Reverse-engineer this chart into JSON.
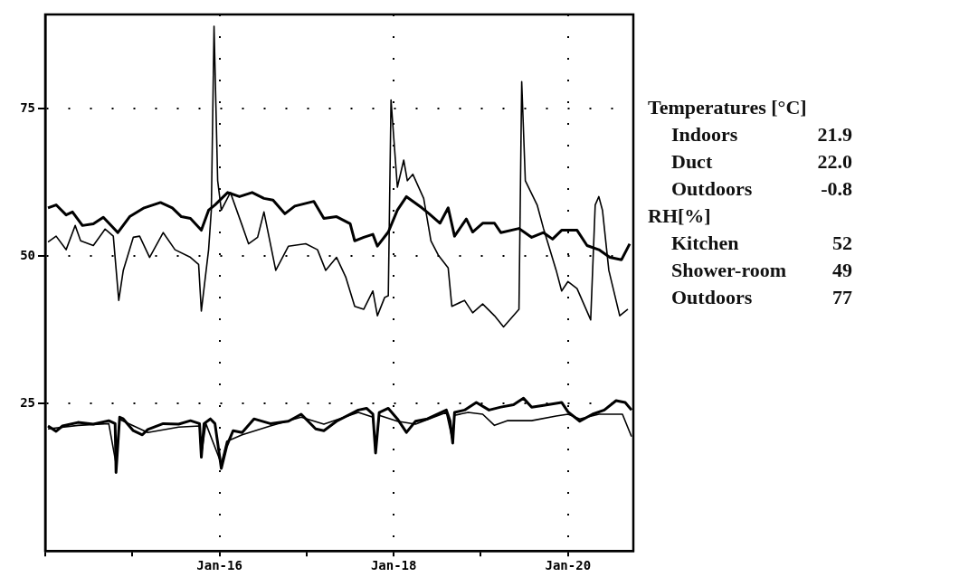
{
  "chart_data": {
    "type": "line",
    "xlim": [
      "--01-14",
      "--01-20T18:00"
    ],
    "ylim": [
      0,
      91
    ],
    "xticks": [
      {
        "value": "--01-14",
        "label": null
      },
      {
        "value": "--01-15",
        "label": null
      },
      {
        "value": "--01-16",
        "label": "Jan-16"
      },
      {
        "value": "--01-17",
        "label": null
      },
      {
        "value": "--01-18",
        "label": "Jan-18"
      },
      {
        "value": "--01-19",
        "label": null
      },
      {
        "value": "--01-20",
        "label": "Jan-20"
      }
    ],
    "yticks": [
      25,
      50,
      75
    ],
    "grid": true,
    "legend": false,
    "marker": "none",
    "line_style": "solid",
    "annotations": [
      "Temperatures [°C]",
      "Indoors\t21.9",
      "Duct\t22.0",
      "Outdoors\t-0.8",
      "RH[%]",
      "Kitchen\t52",
      "Shower-room\t49",
      "Outdoors\t77"
    ],
    "series": [
      {
        "color": "#000000",
        "x": [
          "--01-14T00:45",
          "--01-14T03:00",
          "--01-14T05:45",
          "--01-14T07:30",
          "--01-14T10:15",
          "--01-14T13:15",
          "--01-14T16:00",
          "--01-14T20:00",
          "--01-14T23:15",
          "--01-15T03:15",
          "--01-15T07:45",
          "--01-15T11:00",
          "--01-15T13:30",
          "--01-15T16:00",
          "--01-15T19:00",
          "--01-15T21:00",
          "--01-15T22:45",
          "--01-16T02:15",
          "--01-16T05:30",
          "--01-16T09:00",
          "--01-16T12:15",
          "--01-16T14:45",
          "--01-16T18:00",
          "--01-16T20:45",
          "--01-17T02:00",
          "--01-17T04:45",
          "--01-17T08:15",
          "--01-17T12:00",
          "--01-17T13:15",
          "--01-17T15:45",
          "--01-17T18:15",
          "--01-17T19:30",
          "--01-17T22:30",
          "--01-18T01:00",
          "--01-18T03:30",
          "--01-18T07:45",
          "--01-18T09:45",
          "--01-18T12:45",
          "--01-18T15:00",
          "--01-18T16:45",
          "--01-18T20:00",
          "--01-18T21:45",
          "--01-19T00:30",
          "--01-19T03:45",
          "--01-19T05:30",
          "--01-19T10:30",
          "--01-19T14:00",
          "--01-19T17:15",
          "--01-19T19:45",
          "--01-19T22:15",
          "--01-20T02:30",
          "--01-20T05:15",
          "--01-20T08:30",
          "--01-20T11:30",
          "--01-20T14:45",
          "--01-20T17:00"
        ],
        "values": [
          58.2,
          58.7,
          57.0,
          57.5,
          55.2,
          55.5,
          56.6,
          54.0,
          56.7,
          58.2,
          59.1,
          58.2,
          56.7,
          56.4,
          54.4,
          57.8,
          58.7,
          60.8,
          60.1,
          60.8,
          59.8,
          59.5,
          57.2,
          58.5,
          59.3,
          56.4,
          56.7,
          55.5,
          52.6,
          53.2,
          53.7,
          51.7,
          54.1,
          57.8,
          60.1,
          58.2,
          57.2,
          55.6,
          58.2,
          53.4,
          56.3,
          54.1,
          55.6,
          55.6,
          54.0,
          54.7,
          53.2,
          54.0,
          52.9,
          54.4,
          54.4,
          51.8,
          51.1,
          49.8,
          49.4,
          52.1
        ]
      },
      {
        "color": "#000000",
        "x": [
          "--01-14T00:45",
          "--01-14T03:00",
          "--01-14T05:45",
          "--01-14T08:15",
          "--01-14T09:45",
          "--01-14T13:15",
          "--01-14T16:30",
          "--01-14T18:45",
          "--01-14T20:15",
          "--01-14T21:30",
          "--01-15T00:15",
          "--01-15T02:00",
          "--01-15T04:45",
          "--01-15T08:30",
          "--01-15T11:45",
          "--01-15T16:00",
          "--01-15T18:15",
          "--01-15T19:00",
          "--01-15T21:00",
          "--01-15T21:45",
          "--01-15T22:30",
          "--01-15T23:30",
          "--01-16T00:30",
          "--01-16T03:00",
          "--01-16T06:15",
          "--01-16T08:00",
          "--01-16T10:30",
          "--01-16T12:15",
          "--01-16T15:30",
          "--01-16T19:00",
          "--01-16T23:45",
          "--01-17T03:00",
          "--01-17T05:15",
          "--01-17T08:15",
          "--01-17T10:45",
          "--01-17T13:15",
          "--01-17T15:45",
          "--01-17T18:15",
          "--01-17T19:30",
          "--01-17T21:30",
          "--01-17T22:30",
          "--01-17T23:15",
          "--01-18T01:00",
          "--01-18T02:45",
          "--01-18T03:45",
          "--01-18T05:15",
          "--01-18T08:15",
          "--01-18T10:15",
          "--01-18T12:15",
          "--01-18T15:00",
          "--01-18T16:00",
          "--01-18T19:30",
          "--01-18T21:45",
          "--01-19T00:30",
          "--01-19T03:45",
          "--01-19T06:15",
          "--01-19T10:30",
          "--01-19T11:15",
          "--01-19T12:15",
          "--01-19T15:30",
          "--01-19T17:15",
          "--01-19T20:45",
          "--01-19T22:15",
          "--01-20T00:00",
          "--01-20T02:30",
          "--01-20T06:15",
          "--01-20T07:30",
          "--01-20T08:30",
          "--01-20T09:30",
          "--01-20T11:15",
          "--01-20T14:15",
          "--01-20T16:30"
        ],
        "values": [
          52.4,
          53.4,
          51.1,
          55.2,
          52.6,
          51.8,
          54.6,
          53.4,
          42.5,
          47.6,
          53.2,
          53.4,
          49.8,
          54.0,
          51.1,
          49.8,
          48.6,
          40.7,
          51.1,
          57.8,
          89.0,
          62.8,
          57.8,
          60.8,
          55.2,
          52.1,
          53.2,
          57.5,
          47.6,
          51.7,
          52.1,
          51.1,
          47.6,
          49.8,
          46.5,
          41.5,
          41.0,
          44.1,
          39.9,
          43.0,
          43.3,
          76.5,
          61.7,
          66.3,
          62.8,
          63.9,
          59.8,
          52.6,
          50.2,
          48.0,
          41.5,
          42.5,
          40.4,
          41.9,
          39.9,
          38.0,
          41.0,
          79.6,
          62.8,
          58.7,
          54.7,
          47.6,
          44.1,
          45.7,
          44.5,
          39.2,
          58.7,
          60.1,
          57.8,
          47.6,
          39.9,
          41.0
        ]
      },
      {
        "color": "#000000",
        "x": [
          "--01-14T00:45",
          "--01-14T03:00",
          "--01-14T04:45",
          "--01-14T09:00",
          "--01-14T13:15",
          "--01-14T17:30",
          "--01-14T19:15",
          "--01-14T19:30",
          "--01-14T20:30",
          "--01-14T21:30",
          "--01-15T00:15",
          "--01-15T02:45",
          "--01-15T04:15",
          "--01-15T08:30",
          "--01-15T12:45",
          "--01-15T16:00",
          "--01-15T18:30",
          "--01-15T19:00",
          "--01-15T19:45",
          "--01-15T21:30",
          "--01-15T22:45",
          "--01-16T00:30",
          "--01-16T02:00",
          "--01-16T03:45",
          "--01-16T06:15",
          "--01-16T09:30",
          "--01-16T14:00",
          "--01-16T19:00",
          "--01-16T22:30",
          "--01-17T02:30",
          "--01-17T04:45",
          "--01-17T08:15",
          "--01-17T14:15",
          "--01-17T16:30",
          "--01-17T18:15",
          "--01-17T19:00",
          "--01-17T20:00",
          "--01-17T22:30",
          "--01-18T01:00",
          "--01-18T03:30",
          "--01-18T06:00",
          "--01-18T09:15",
          "--01-18T14:30",
          "--01-18T15:30",
          "--01-18T16:15",
          "--01-18T16:45",
          "--01-18T19:30",
          "--01-18T22:45",
          "--01-19T02:15",
          "--01-19T05:30",
          "--01-19T09:00",
          "--01-19T11:45",
          "--01-19T14:00",
          "--01-19T17:15",
          "--01-19T22:15",
          "--01-20T00:00",
          "--01-20T03:15",
          "--01-20T06:45",
          "--01-20T10:00",
          "--01-20T13:15",
          "--01-20T15:45",
          "--01-20T17:30"
        ],
        "values": [
          21.2,
          20.3,
          21.2,
          21.8,
          21.5,
          22.1,
          21.6,
          13.3,
          22.7,
          22.4,
          20.4,
          19.7,
          20.6,
          21.6,
          21.5,
          22.1,
          21.6,
          15.9,
          21.6,
          22.4,
          21.6,
          14.0,
          17.8,
          20.4,
          20.1,
          22.4,
          21.6,
          22.0,
          23.2,
          20.7,
          20.4,
          22.0,
          23.9,
          24.2,
          23.2,
          16.6,
          23.5,
          24.2,
          22.4,
          20.1,
          22.0,
          22.4,
          23.9,
          22.1,
          18.3,
          23.5,
          23.9,
          25.2,
          23.9,
          24.4,
          24.8,
          25.9,
          24.4,
          24.7,
          25.2,
          23.6,
          22.0,
          23.2,
          23.9,
          25.5,
          25.2,
          23.9
        ]
      },
      {
        "color": "#000000",
        "x": [
          "--01-14T00:45",
          "--01-14T09:00",
          "--01-14T17:30",
          "--01-14T19:30",
          "--01-14T20:30",
          "--01-15T04:15",
          "--01-15T12:45",
          "--01-15T18:30",
          "--01-15T19:00",
          "--01-15T20:15",
          "--01-16T00:30",
          "--01-16T02:00",
          "--01-16T06:15",
          "--01-16T14:00",
          "--01-16T22:30",
          "--01-17T04:45",
          "--01-17T14:15",
          "--01-17T18:15",
          "--01-17T19:00",
          "--01-17T20:00",
          "--01-18T01:00",
          "--01-18T06:00",
          "--01-18T14:30",
          "--01-18T16:15",
          "--01-18T16:45",
          "--01-18T20:30",
          "--01-19T00:30",
          "--01-19T03:45",
          "--01-19T07:15",
          "--01-19T14:00",
          "--01-19T20:45",
          "--01-20T00:00",
          "--01-20T03:15",
          "--01-20T08:30",
          "--01-20T15:00",
          "--01-20T17:30"
        ],
        "values": [
          20.7,
          21.3,
          21.6,
          14.8,
          22.3,
          20.1,
          21.0,
          21.2,
          16.3,
          21.6,
          14.8,
          18.6,
          19.7,
          21.2,
          22.7,
          21.5,
          23.5,
          22.7,
          17.1,
          23.0,
          22.0,
          21.5,
          23.5,
          18.6,
          23.0,
          23.5,
          23.2,
          21.3,
          22.1,
          22.1,
          22.9,
          23.2,
          22.4,
          23.2,
          23.2,
          19.4
        ]
      }
    ]
  }
}
